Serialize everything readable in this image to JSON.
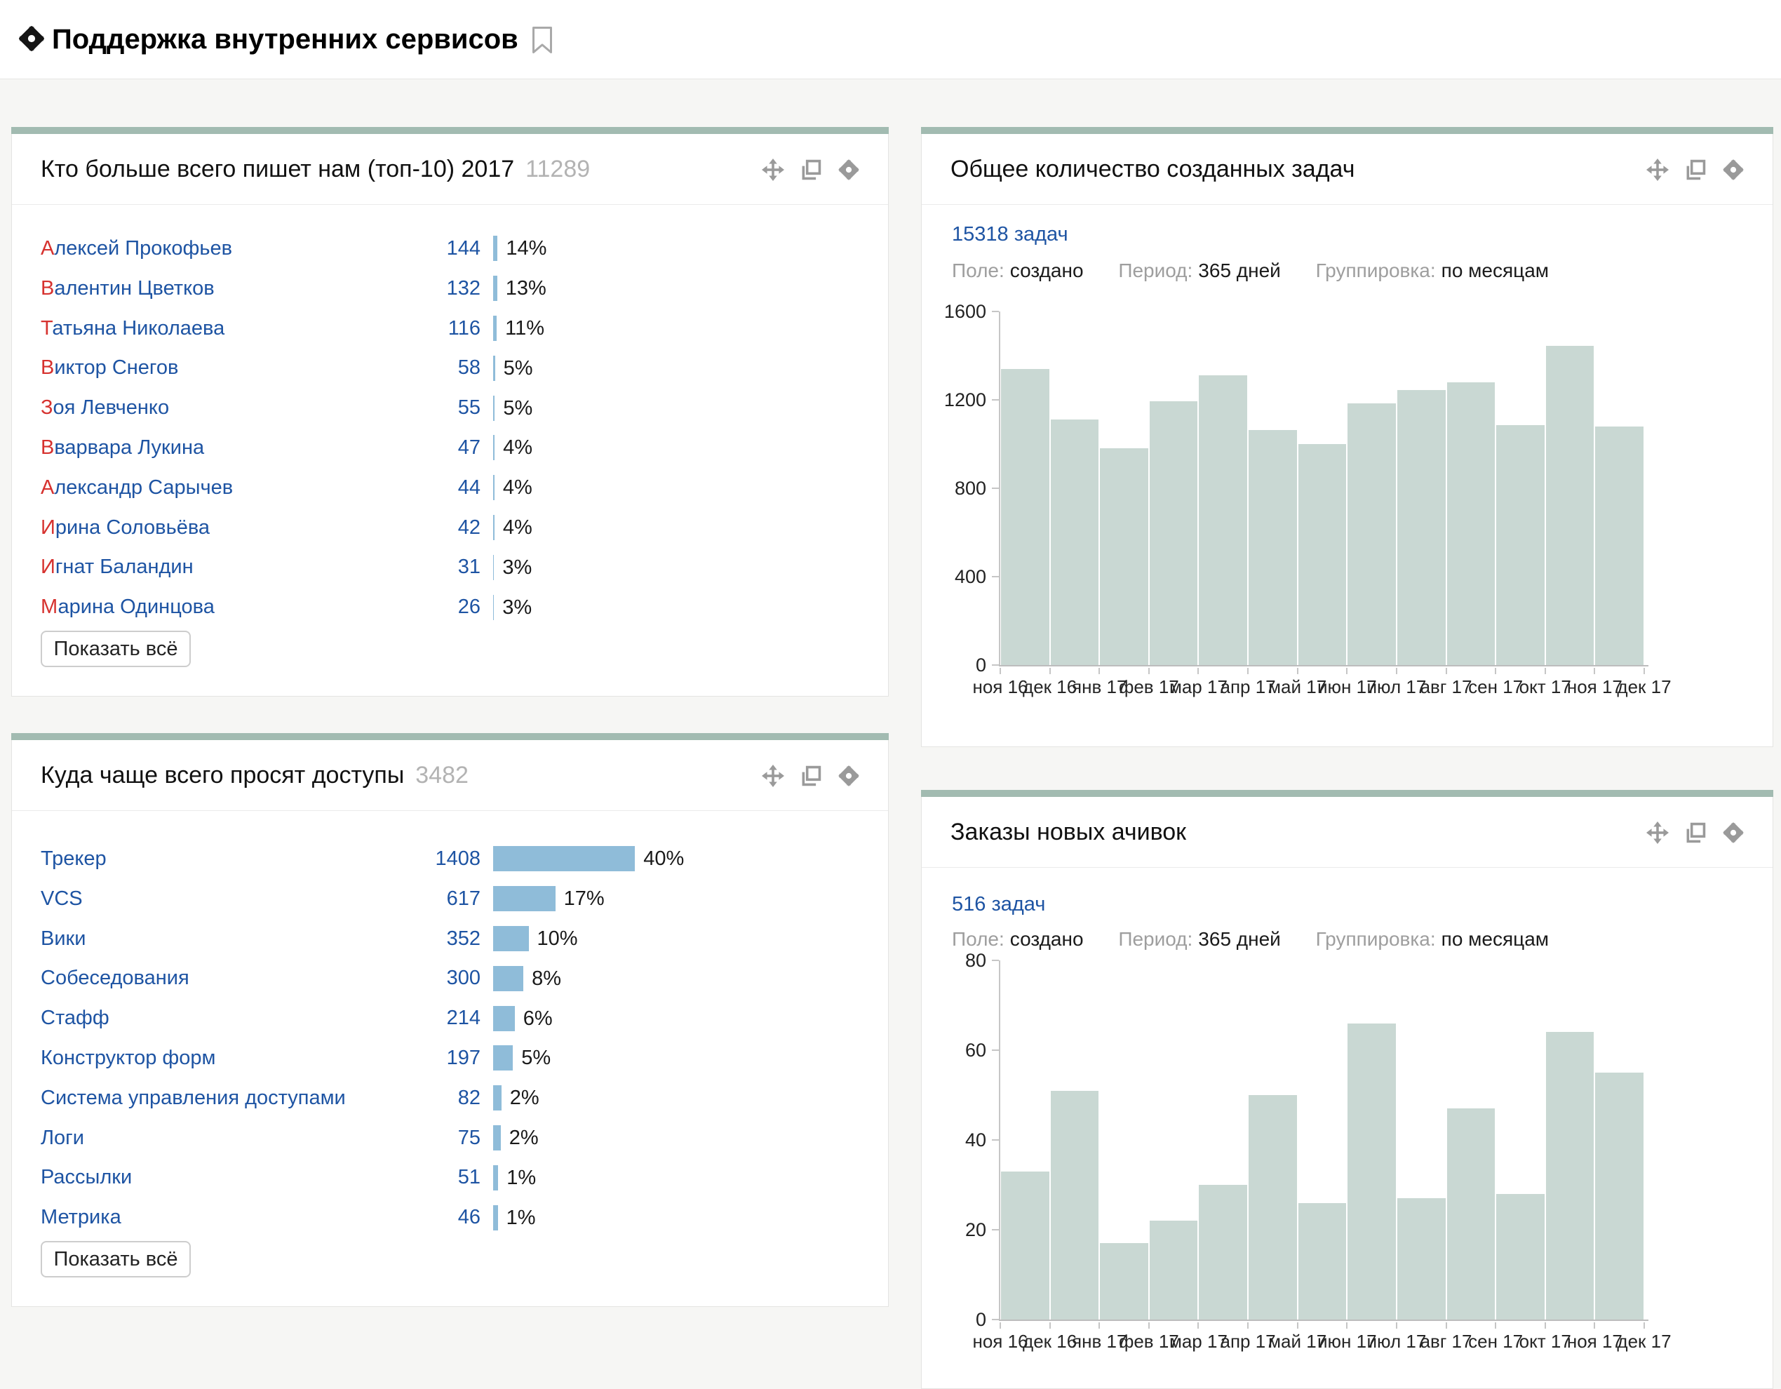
{
  "page": {
    "title": "Поддержка внутренних сервисов"
  },
  "colors": {
    "accent": "#a2bbb1",
    "chart-bar": "#c9d8d3",
    "blue-bar": "#8fbcd9",
    "link": "#1e54a3",
    "red": "#d6322f",
    "icon": "#9a9a9a"
  },
  "widgets": {
    "top_writers": {
      "title": "Кто больше всего пишет нам (топ-10) 2017",
      "count": "11289",
      "total": 11289,
      "highlight_first_letter": true,
      "show_all_label": "Показать всё",
      "rows": [
        {
          "name": "Алексей Прокофьев",
          "count": 144,
          "percent": "14%"
        },
        {
          "name": "Валентин Цветков",
          "count": 132,
          "percent": "13%"
        },
        {
          "name": "Татьяна Николаева",
          "count": 116,
          "percent": "11%"
        },
        {
          "name": "Виктор Снегов",
          "count": 58,
          "percent": "5%"
        },
        {
          "name": "Зоя Левченко",
          "count": 55,
          "percent": "5%"
        },
        {
          "name": "Вварвара Лукина",
          "count": 47,
          "percent": "4%"
        },
        {
          "name": "Александр Сарычев",
          "count": 44,
          "percent": "4%"
        },
        {
          "name": "Ирина Соловьёва",
          "count": 42,
          "percent": "4%"
        },
        {
          "name": "Игнат Баландин",
          "count": 31,
          "percent": "3%"
        },
        {
          "name": "Марина Одинцова",
          "count": 26,
          "percent": "3%"
        }
      ]
    },
    "access_requests": {
      "title": "Куда чаще всего просят доступы",
      "count": "3482",
      "total": 3482,
      "highlight_first_letter": false,
      "show_all_label": "Показать всё",
      "rows": [
        {
          "name": "Трекер",
          "count": 1408,
          "percent": "40%"
        },
        {
          "name": "VCS",
          "count": 617,
          "percent": "17%"
        },
        {
          "name": "Вики",
          "count": 352,
          "percent": "10%"
        },
        {
          "name": "Собеседования",
          "count": 300,
          "percent": "8%"
        },
        {
          "name": "Стафф",
          "count": 214,
          "percent": "6%"
        },
        {
          "name": "Конструктор форм",
          "count": 197,
          "percent": "5%"
        },
        {
          "name": "Система управления доступами",
          "count": 82,
          "percent": "2%"
        },
        {
          "name": "Логи",
          "count": 75,
          "percent": "2%"
        },
        {
          "name": "Рассылки",
          "count": 51,
          "percent": "1%"
        },
        {
          "name": "Метрика",
          "count": 46,
          "percent": "1%"
        }
      ]
    },
    "created_tasks": {
      "title": "Общее количество созданных задач",
      "link": "15318 задач",
      "meta": [
        {
          "label": "Поле:",
          "value": "создано"
        },
        {
          "label": "Период:",
          "value": "365 дней"
        },
        {
          "label": "Группировка:",
          "value": "по месяцам"
        }
      ]
    },
    "achievements": {
      "title": "Заказы новых ачивок",
      "link": "516 задач",
      "meta": [
        {
          "label": "Поле:",
          "value": "создано"
        },
        {
          "label": "Период:",
          "value": "365 дней"
        },
        {
          "label": "Группировка:",
          "value": "по месяцам"
        }
      ]
    }
  },
  "chart_data": [
    {
      "type": "bar",
      "title": "Общее количество созданных задач",
      "total_label": "15318 задач",
      "categories": [
        "ноя 16",
        "дек 16",
        "янв 17",
        "фев 17",
        "мар 17",
        "апр 17",
        "май 17",
        "июн 17",
        "июл 17",
        "авг 17",
        "сен 17",
        "окт 17",
        "ноя 17",
        "дек 17"
      ],
      "values": [
        1340,
        1110,
        980,
        1195,
        1310,
        1065,
        1000,
        1185,
        1245,
        1280,
        1085,
        1445,
        1078
      ],
      "note": "13 monthly bars; category labels mark bar boundaries, дек 17 closes the period",
      "xlabel": "",
      "ylabel": "",
      "ylim": [
        0,
        1600
      ],
      "yticks": [
        0,
        400,
        800,
        1200,
        1600
      ],
      "grid": false,
      "legend": "none"
    },
    {
      "type": "bar",
      "title": "Заказы новых ачивок",
      "total_label": "516 задач",
      "categories": [
        "ноя 16",
        "дек 16",
        "янв 17",
        "фев 17",
        "мар 17",
        "апр 17",
        "май 17",
        "июн 17",
        "июл 17",
        "авг 17",
        "сен 17",
        "окт 17",
        "ноя 17",
        "дек 17"
      ],
      "values": [
        33,
        51,
        17,
        22,
        30,
        50,
        26,
        66,
        27,
        47,
        28,
        64,
        55
      ],
      "note": "13 monthly bars summing to 516; x labels cropped by viewport bottom",
      "xlabel": "",
      "ylabel": "",
      "ylim": [
        0,
        80
      ],
      "yticks": [
        0,
        20,
        40,
        60,
        80
      ],
      "grid": false,
      "legend": "none"
    }
  ]
}
